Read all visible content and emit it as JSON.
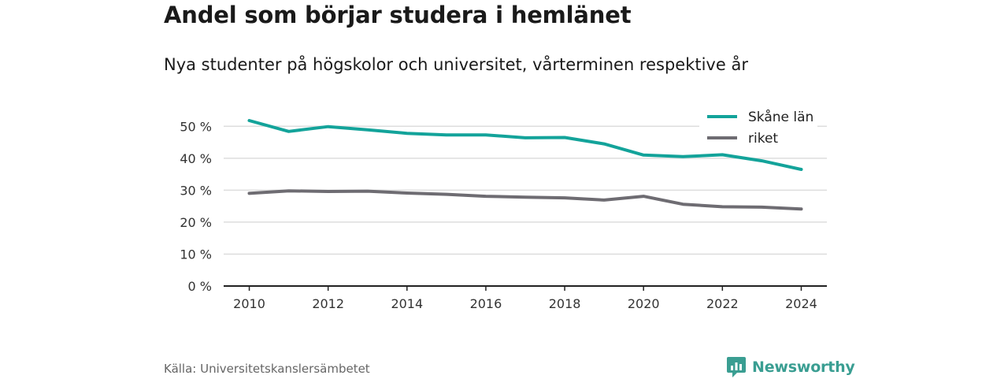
{
  "title": "Andel som börjar studera i hemlänet",
  "subtitle": "Nya studenter på högskolor och universitet, vårterminen respektive år",
  "source": "Källa: Universitetskanslersämbetet",
  "brand": {
    "name": "Newsworthy",
    "color": "#3a9e92",
    "icon": "newsworthy-logo-icon"
  },
  "chart_data": {
    "type": "line",
    "x": [
      2010,
      2011,
      2012,
      2013,
      2014,
      2015,
      2016,
      2017,
      2018,
      2019,
      2020,
      2021,
      2022,
      2023,
      2024
    ],
    "xticks": [
      2010,
      2012,
      2014,
      2016,
      2018,
      2020,
      2022,
      2024
    ],
    "xtick_labels": [
      "2010",
      "2012",
      "2014",
      "2016",
      "2018",
      "2020",
      "2022",
      "2024"
    ],
    "xlim": [
      2009.35,
      2024.65
    ],
    "ylim": [
      0,
      55
    ],
    "yticks": [
      0,
      10,
      20,
      30,
      40,
      50
    ],
    "ytick_labels": [
      "0 %",
      "10 %",
      "20 %",
      "30 %",
      "40 %",
      "50 %"
    ],
    "grid": true,
    "legend_position": "top-right",
    "series": [
      {
        "name": "Skåne län",
        "color": "#13a39a",
        "values": [
          51.8,
          48.4,
          49.9,
          48.9,
          47.8,
          47.3,
          47.3,
          46.4,
          46.5,
          44.5,
          41.0,
          40.5,
          41.1,
          39.2,
          36.5
        ]
      },
      {
        "name": "riket",
        "color": "#6e6c72",
        "values": [
          29.0,
          29.8,
          29.6,
          29.7,
          29.1,
          28.7,
          28.1,
          27.8,
          27.6,
          26.9,
          28.1,
          25.6,
          24.8,
          24.7,
          24.1
        ]
      }
    ]
  }
}
